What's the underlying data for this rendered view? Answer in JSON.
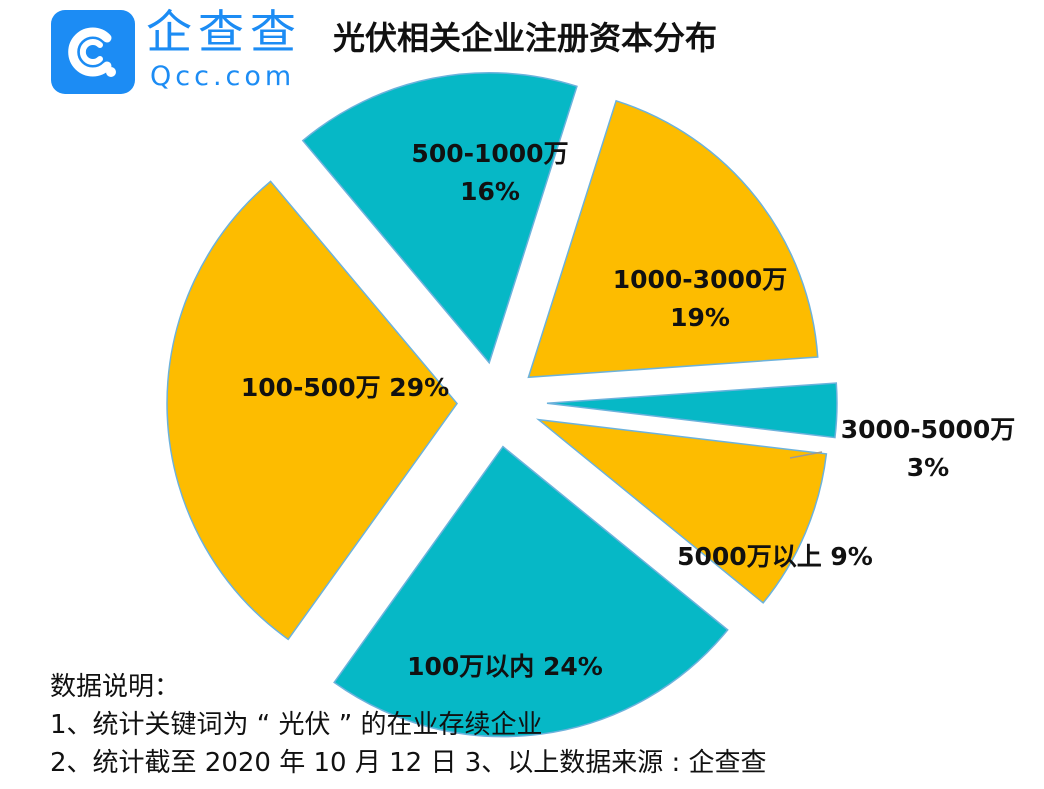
{
  "header": {
    "logo_text_cn": "企查查",
    "logo_text_en": "Qcc.com",
    "title": "光伏相关企业注册资本分布"
  },
  "colors": {
    "brand_blue": "#1c8cf4",
    "teal": "#06b8c6",
    "gold": "#fdbc00",
    "edge": "#6cb2dc"
  },
  "chart_data": {
    "type": "pie",
    "unit": "%",
    "slices": [
      {
        "label": "500-1000万",
        "value": 16,
        "value_label": "16%",
        "color": "#06b8c6"
      },
      {
        "label": "1000-3000万",
        "value": 19,
        "value_label": "19%",
        "color": "#fdbc00"
      },
      {
        "label": "3000-5000万",
        "value": 3,
        "value_label": "3%",
        "color": "#06b8c6"
      },
      {
        "label": "5000万以上",
        "value": 9,
        "value_label": "9%",
        "color": "#fdbc00"
      },
      {
        "label": "100万以内",
        "value": 24,
        "value_label": "24%",
        "color": "#06b8c6"
      },
      {
        "label": "100-500万",
        "value": 29,
        "value_label": "29%",
        "color": "#fdbc00"
      }
    ]
  },
  "notes": {
    "heading": "数据说明：",
    "line1": "1、统计关键词为 “ 光伏 ” 的在业存续企业",
    "line2": "2、统计截至 2020 年 10 月 12 日  3、以上数据来源 : 企查查"
  }
}
